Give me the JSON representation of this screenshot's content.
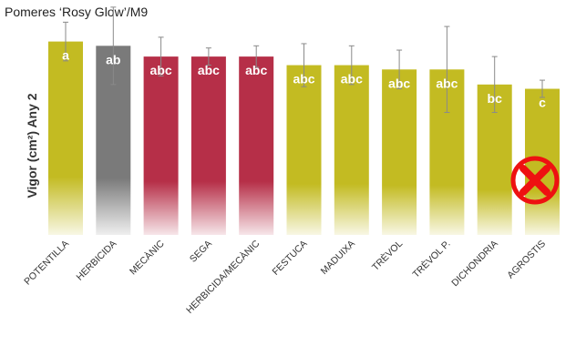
{
  "chart_data": {
    "type": "bar",
    "title": "Pomeres ‘Rosy Glow’/M9",
    "ylabel": "Vigor (cm²) Any 2",
    "xlabel": "",
    "ylim": [
      0,
      100
    ],
    "grid": false,
    "categories": [
      "POTENTILLA",
      "HERBICIDA",
      "MECÀNIC",
      "SEGA",
      "HERBICIDA/MECÀNIC",
      "FESTUCA",
      "MADUIXA",
      "TRÈVOL",
      "TRÈVOL P.",
      "DICHONDRIA",
      "AGROSTIS"
    ],
    "values": [
      90,
      88,
      83,
      83,
      83,
      79,
      79,
      77,
      77,
      70,
      68
    ],
    "error": [
      9,
      18,
      9,
      4,
      5,
      10,
      9,
      9,
      20,
      13,
      4
    ],
    "labels": [
      "a",
      "ab",
      "abc",
      "abc",
      "abc",
      "abc",
      "abc",
      "abc",
      "abc",
      "bc",
      "c"
    ],
    "colors": [
      "#c3bb22",
      "#7a7a7a",
      "#b62f48",
      "#b62f48",
      "#b62f48",
      "#c3bb22",
      "#c3bb22",
      "#c3bb22",
      "#c3bb22",
      "#c3bb22",
      "#c3bb22"
    ],
    "annotation_icon": "red-cross-circle-icon",
    "annotation_color": "#ee1111"
  }
}
